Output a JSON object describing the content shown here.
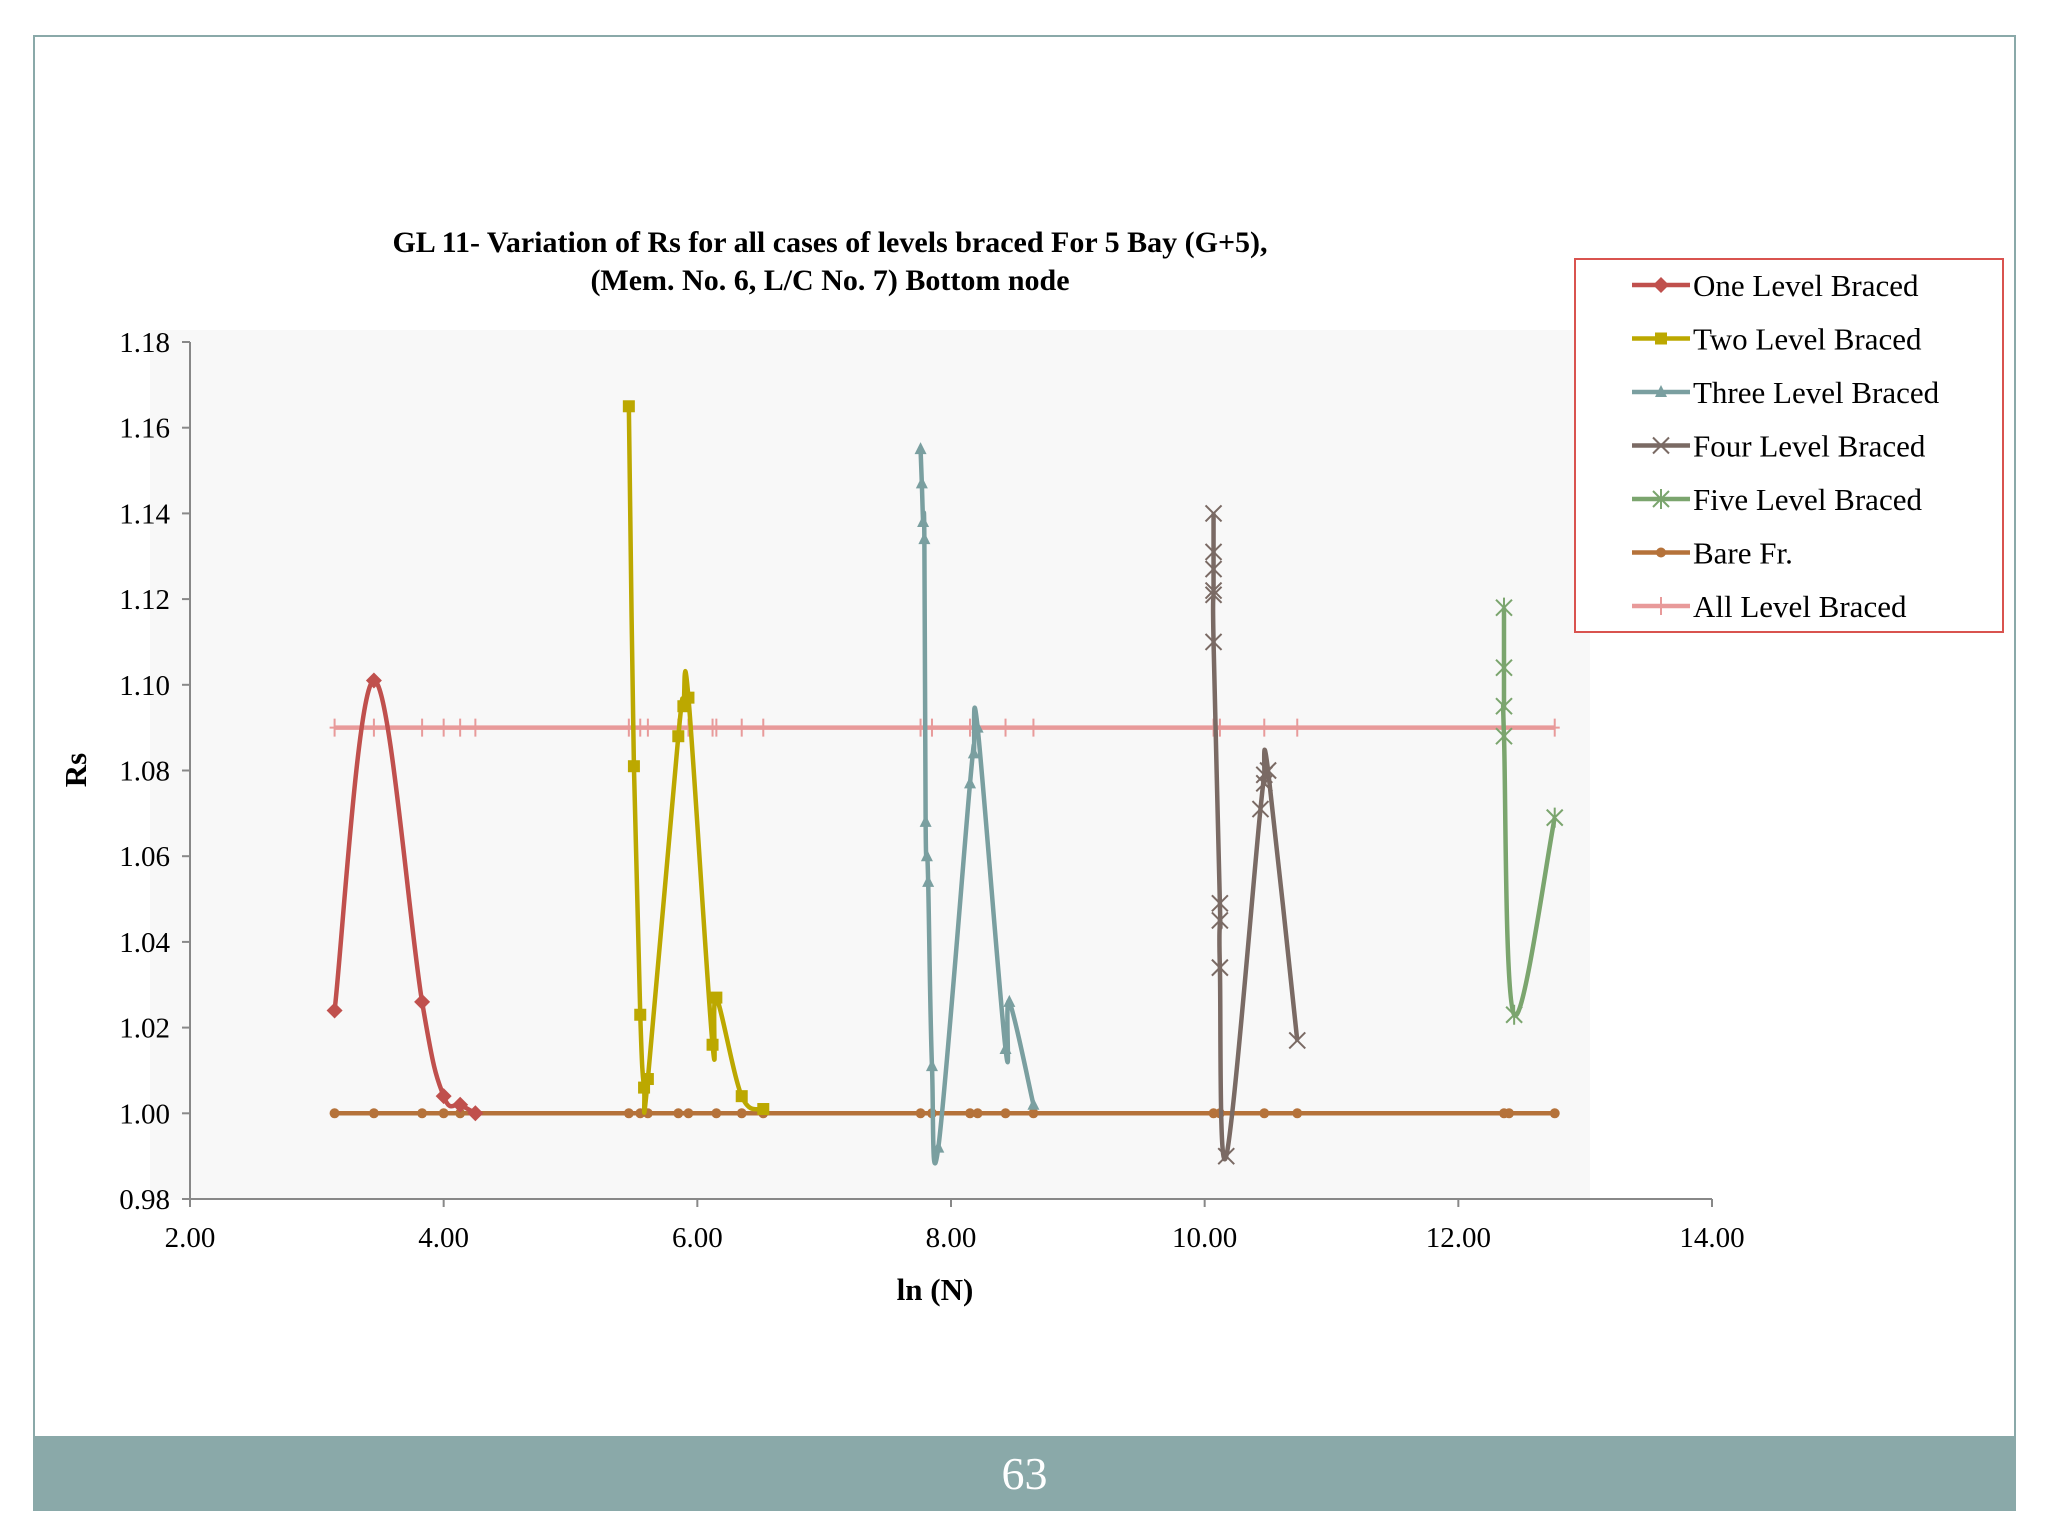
{
  "page": {
    "number": "63",
    "frame_color": "#8aa9a9"
  },
  "chart_data": {
    "type": "line",
    "title_line1": "GL 11- Variation of Rs for all cases of levels braced For 5 Bay (G+5),",
    "title_line2": "(Mem. No. 6, L/C No. 7) Bottom node",
    "xlabel": "ln (N)",
    "ylabel": "Rs",
    "xlim": [
      2,
      14
    ],
    "ylim": [
      0.98,
      1.18
    ],
    "xticks": [
      "2.00",
      "4.00",
      "6.00",
      "8.00",
      "10.00",
      "12.00",
      "14.00"
    ],
    "yticks": [
      "0.98",
      "1.00",
      "1.02",
      "1.04",
      "1.06",
      "1.08",
      "1.10",
      "1.12",
      "1.14",
      "1.16",
      "1.18"
    ],
    "legend_position": "top-right",
    "series": [
      {
        "name": "One Level Braced",
        "color": "#c0504d",
        "marker": "diamond",
        "points": [
          [
            3.14,
            1.024
          ],
          [
            3.45,
            1.101
          ],
          [
            3.83,
            1.026
          ],
          [
            4.0,
            1.004
          ],
          [
            4.13,
            1.002
          ],
          [
            4.25,
            1.0
          ]
        ]
      },
      {
        "name": "Two Level Braced",
        "color": "#bca800",
        "marker": "square",
        "points": [
          [
            5.46,
            1.165
          ],
          [
            5.5,
            1.081
          ],
          [
            5.55,
            1.023
          ],
          [
            5.58,
            1.006
          ],
          [
            5.61,
            1.008
          ],
          [
            5.85,
            1.088
          ],
          [
            5.89,
            1.095
          ],
          [
            5.93,
            1.097
          ],
          [
            6.12,
            1.016
          ],
          [
            6.15,
            1.027
          ],
          [
            6.35,
            1.004
          ],
          [
            6.52,
            1.001
          ]
        ]
      },
      {
        "name": "Three Level Braced",
        "color": "#7a9fa0",
        "marker": "triangle",
        "points": [
          [
            7.76,
            1.155
          ],
          [
            7.77,
            1.147
          ],
          [
            7.78,
            1.138
          ],
          [
            7.79,
            1.134
          ],
          [
            7.8,
            1.068
          ],
          [
            7.81,
            1.06
          ],
          [
            7.82,
            1.054
          ],
          [
            7.85,
            1.011
          ],
          [
            7.9,
            0.992
          ],
          [
            8.15,
            1.077
          ],
          [
            8.18,
            1.084
          ],
          [
            8.21,
            1.09
          ],
          [
            8.43,
            1.015
          ],
          [
            8.46,
            1.026
          ],
          [
            8.65,
            1.002
          ]
        ]
      },
      {
        "name": "Four Level Braced",
        "color": "#7a6a64",
        "marker": "x",
        "points": [
          [
            10.07,
            1.14
          ],
          [
            10.07,
            1.131
          ],
          [
            10.07,
            1.127
          ],
          [
            10.07,
            1.122
          ],
          [
            10.07,
            1.121
          ],
          [
            10.07,
            1.11
          ],
          [
            10.12,
            1.049
          ],
          [
            10.12,
            1.045
          ],
          [
            10.12,
            1.034
          ],
          [
            10.17,
            0.99
          ],
          [
            10.44,
            1.071
          ],
          [
            10.47,
            1.077
          ],
          [
            10.47,
            1.079
          ],
          [
            10.5,
            1.08
          ],
          [
            10.73,
            1.017
          ]
        ]
      },
      {
        "name": "Five Level Braced",
        "color": "#7ba56e",
        "marker": "star",
        "points": [
          [
            12.36,
            1.118
          ],
          [
            12.36,
            1.104
          ],
          [
            12.36,
            1.095
          ],
          [
            12.36,
            1.088
          ],
          [
            12.44,
            1.023
          ],
          [
            12.76,
            1.069
          ]
        ]
      },
      {
        "name": "Bare Fr.",
        "color": "#b5723a",
        "marker": "circle",
        "points": [
          [
            3.14,
            1.0
          ],
          [
            3.45,
            1.0
          ],
          [
            3.83,
            1.0
          ],
          [
            4.0,
            1.0
          ],
          [
            4.13,
            1.0
          ],
          [
            4.25,
            1.0
          ],
          [
            5.46,
            1.0
          ],
          [
            5.55,
            1.0
          ],
          [
            5.61,
            1.0
          ],
          [
            5.85,
            1.0
          ],
          [
            5.93,
            1.0
          ],
          [
            6.15,
            1.0
          ],
          [
            6.35,
            1.0
          ],
          [
            6.52,
            1.0
          ],
          [
            7.76,
            1.0
          ],
          [
            7.85,
            1.0
          ],
          [
            8.15,
            1.0
          ],
          [
            8.21,
            1.0
          ],
          [
            8.43,
            1.0
          ],
          [
            8.65,
            1.0
          ],
          [
            10.07,
            1.0
          ],
          [
            10.12,
            1.0
          ],
          [
            10.47,
            1.0
          ],
          [
            10.73,
            1.0
          ],
          [
            12.36,
            1.0
          ],
          [
            12.4,
            1.0
          ],
          [
            12.76,
            1.0
          ]
        ]
      },
      {
        "name": "All Level Braced",
        "color": "#e89a9a",
        "marker": "plus",
        "points": [
          [
            3.14,
            1.09
          ],
          [
            3.45,
            1.09
          ],
          [
            3.83,
            1.09
          ],
          [
            4.0,
            1.09
          ],
          [
            4.13,
            1.09
          ],
          [
            4.25,
            1.09
          ],
          [
            5.46,
            1.09
          ],
          [
            5.55,
            1.09
          ],
          [
            5.61,
            1.09
          ],
          [
            5.85,
            1.09
          ],
          [
            5.93,
            1.09
          ],
          [
            6.12,
            1.09
          ],
          [
            6.15,
            1.09
          ],
          [
            6.35,
            1.09
          ],
          [
            6.52,
            1.09
          ],
          [
            7.76,
            1.09
          ],
          [
            7.8,
            1.09
          ],
          [
            7.85,
            1.09
          ],
          [
            8.15,
            1.09
          ],
          [
            8.21,
            1.09
          ],
          [
            8.43,
            1.09
          ],
          [
            8.65,
            1.09
          ],
          [
            10.07,
            1.09
          ],
          [
            10.12,
            1.09
          ],
          [
            10.47,
            1.09
          ],
          [
            10.73,
            1.09
          ],
          [
            12.36,
            1.09
          ],
          [
            12.76,
            1.09
          ]
        ]
      }
    ]
  }
}
